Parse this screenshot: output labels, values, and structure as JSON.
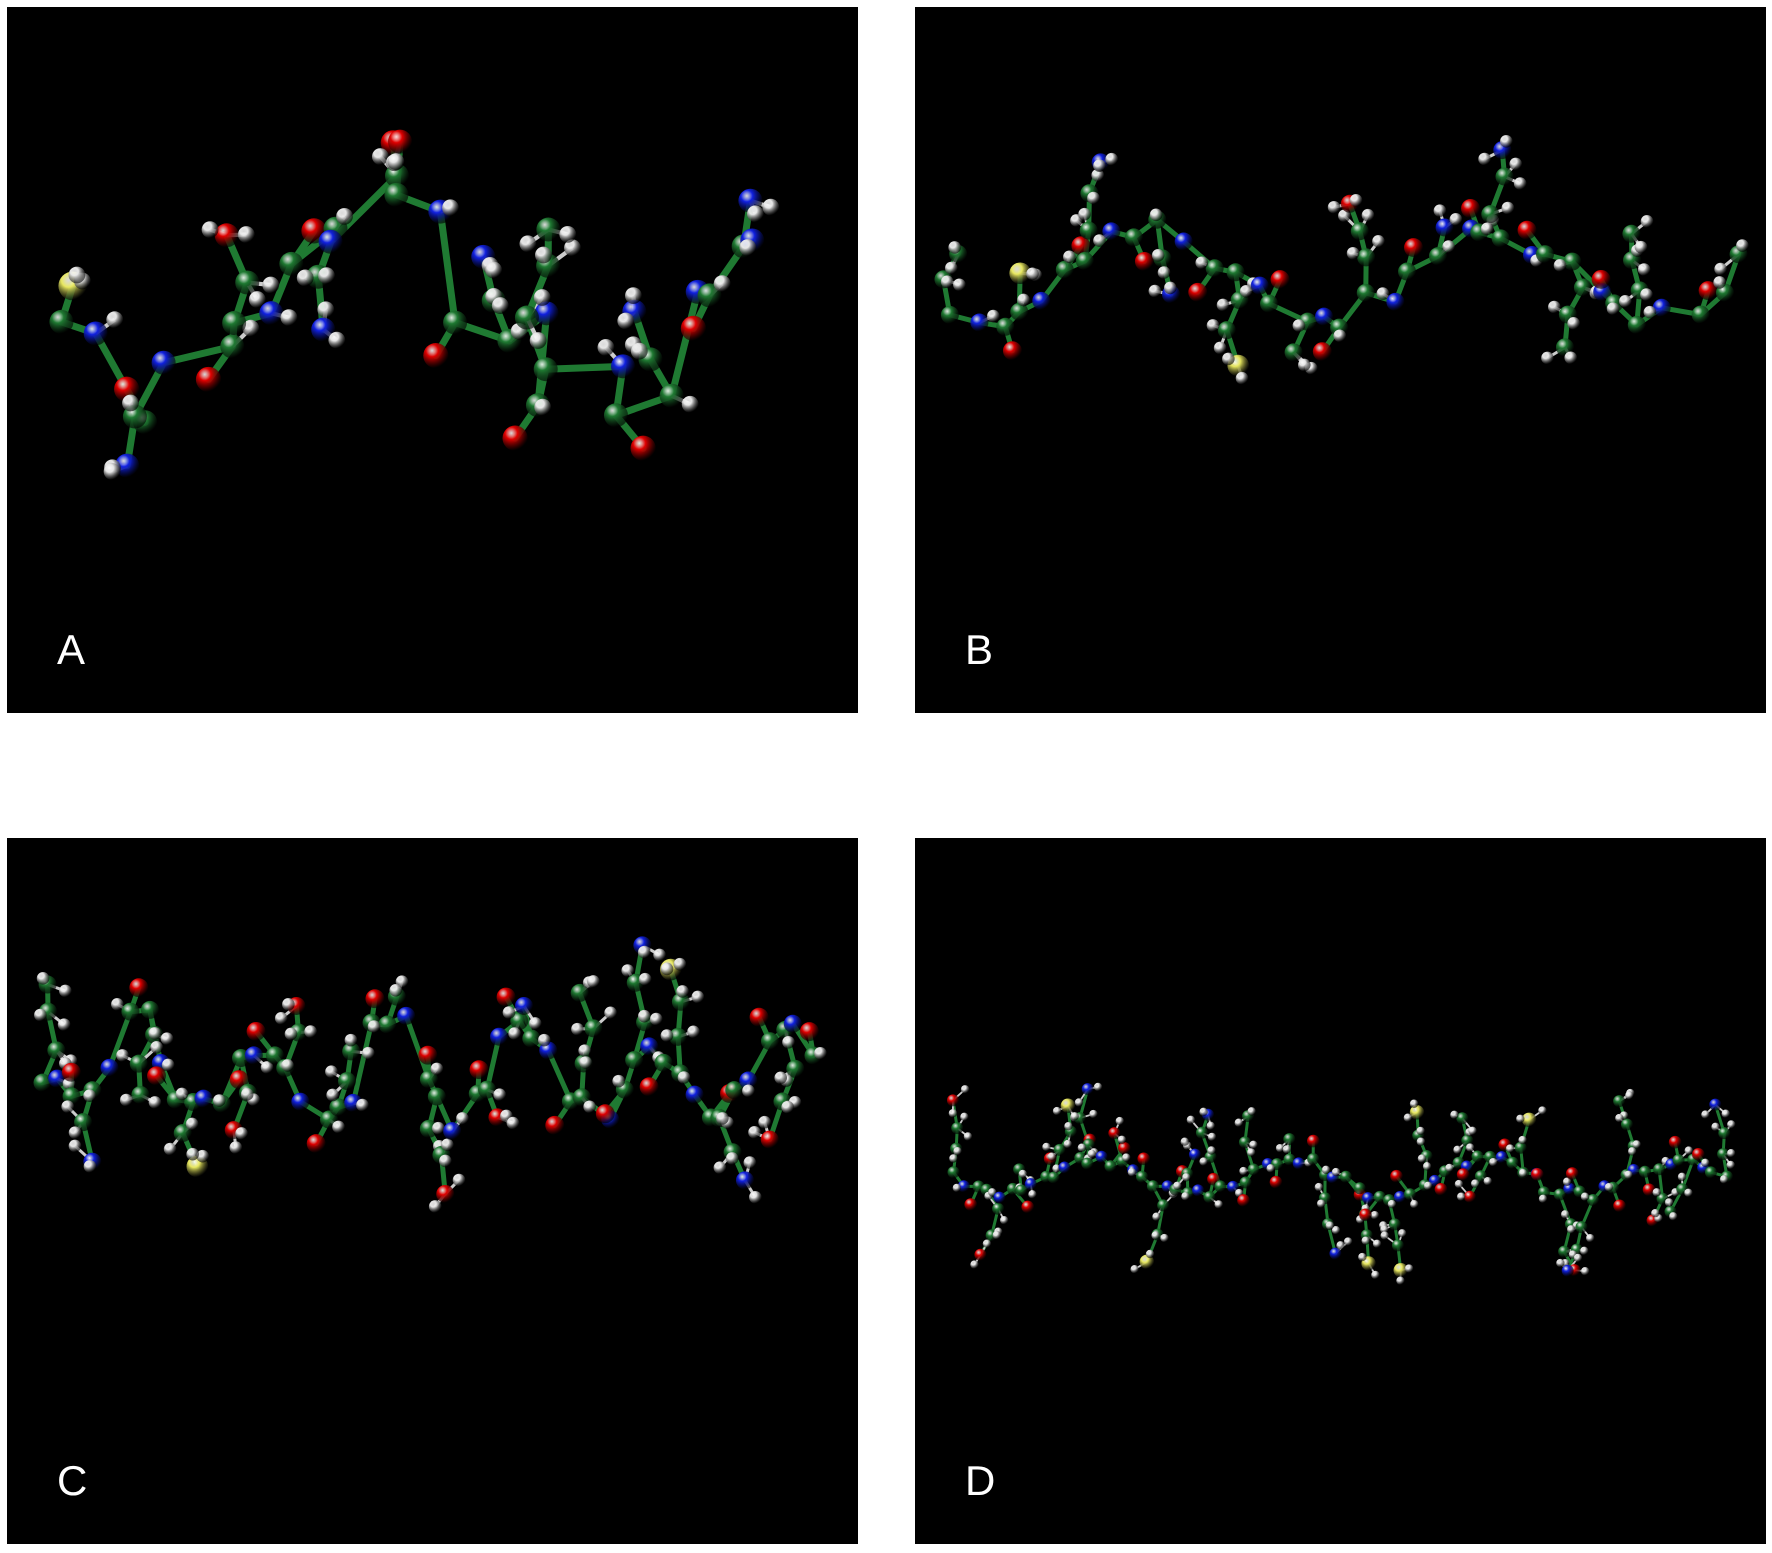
{
  "figure": {
    "panels": [
      {
        "label": "A",
        "scene": "compact-folded-peptide"
      },
      {
        "label": "B",
        "scene": "extended-peptide-chain"
      },
      {
        "label": "C",
        "scene": "folded-helix-peptide"
      },
      {
        "label": "D",
        "scene": "long-extended-peptide"
      }
    ],
    "atom_colors": {
      "carbon": "#1f7a32",
      "hydrogen": "#e6e6e6",
      "oxygen": "#e00000",
      "nitrogen": "#1020e0",
      "sulfur": "#e8e860",
      "bond": "#1f7a32"
    },
    "background": "#000000"
  }
}
